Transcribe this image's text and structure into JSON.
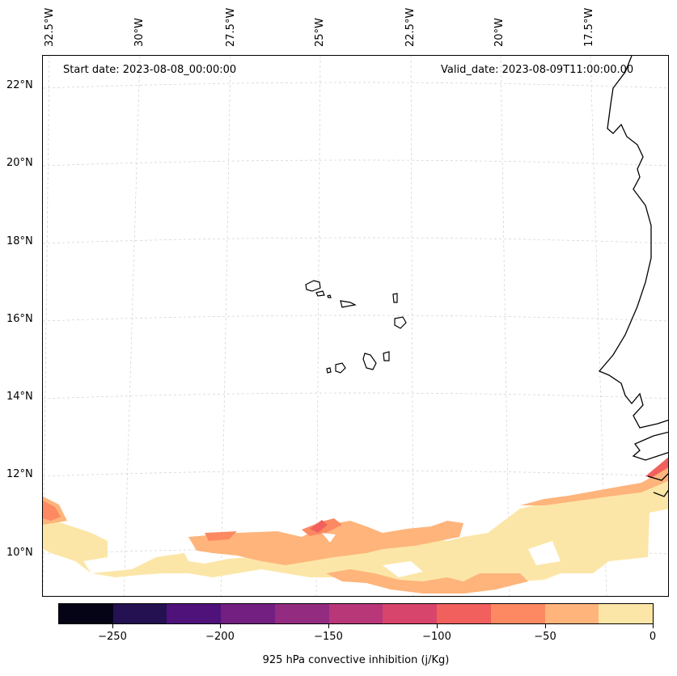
{
  "map": {
    "start_label": "Start date: 2023-08-08_00:00:00",
    "valid_label": "Valid_date: 2023-08-09T11:00:00.00",
    "lon_labels": [
      "32.5°W",
      "30°W",
      "27.5°W",
      "25°W",
      "22.5°W",
      "20°W",
      "17.5°W"
    ],
    "lat_labels": [
      "22°N",
      "20°N",
      "18°N",
      "16°N",
      "14°N",
      "12°N",
      "10°N"
    ],
    "colors": {
      "coastline": "#000000",
      "gridline": "#cfcfcf"
    }
  },
  "colorbar": {
    "title": "925 hPa convective inhibition (j/Kg)",
    "tick_labels": [
      "−250",
      "−200",
      "−150",
      "−100",
      "−50",
      "0"
    ],
    "levels": [
      -275,
      -250,
      -225,
      -200,
      -175,
      -150,
      -125,
      -100,
      -75,
      -50,
      -25,
      0
    ],
    "colors": [
      "#050416",
      "#231151",
      "#4f127b",
      "#721f81",
      "#932b80",
      "#b73779",
      "#d8456c",
      "#f1605d",
      "#fc8961",
      "#feb47b",
      "#fce6a7"
    ]
  }
}
